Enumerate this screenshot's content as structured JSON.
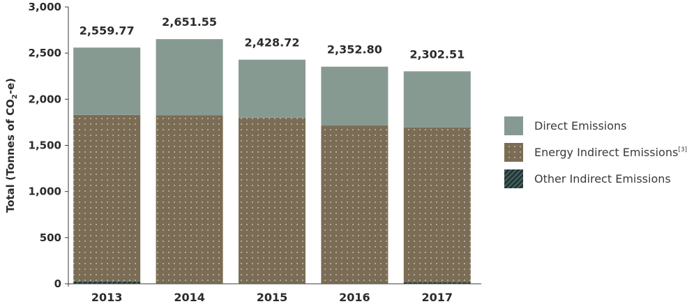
{
  "chart_data": {
    "type": "bar",
    "stacked": true,
    "categories": [
      "2013",
      "2014",
      "2015",
      "2016",
      "2017"
    ],
    "totals": [
      "2,559.77",
      "2,651.55",
      "2,428.72",
      "2,352.80",
      "2,302.51"
    ],
    "series": [
      {
        "name": "Other Indirect Emissions",
        "values": [
          25,
          5,
          5,
          5,
          15
        ],
        "color": "#233a3a",
        "pattern": "hatch"
      },
      {
        "name": "Energy Indirect Emissions",
        "superscript": "[3]",
        "values": [
          1805,
          1820,
          1795,
          1710,
          1680
        ],
        "color": "#7b6d55",
        "pattern": "dots"
      },
      {
        "name": "Direct Emissions",
        "values": [
          729.77,
          826.55,
          628.72,
          637.8,
          607.51
        ],
        "color": "#879a92",
        "pattern": "solid"
      }
    ],
    "ylabel": {
      "parts": [
        {
          "text": "Total (Tonnes of CO",
          "sub": false
        },
        {
          "text": "2",
          "sub": true
        },
        {
          "text": "-e)",
          "sub": false
        }
      ]
    },
    "ylim": [
      0,
      3000
    ],
    "yticks": [
      0,
      500,
      1000,
      1500,
      2000,
      2500,
      3000
    ],
    "ytick_labels": [
      "0",
      "500",
      "1,000",
      "1,500",
      "2,000",
      "2,500",
      "3,000"
    ],
    "legend_position": "right",
    "legend_order": [
      "Direct Emissions",
      "Energy Indirect Emissions",
      "Other Indirect Emissions"
    ],
    "grid": false
  }
}
